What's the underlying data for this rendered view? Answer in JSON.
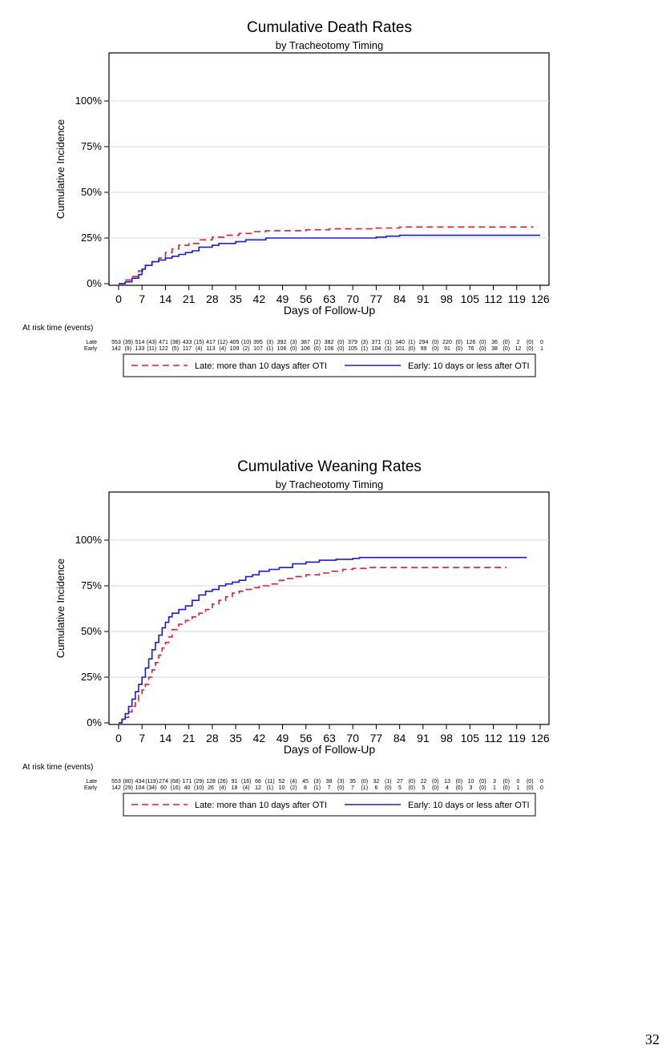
{
  "page_number": "32",
  "chart_data": [
    {
      "type": "line",
      "title": "Cumulative Death Rates",
      "subtitle": "by Tracheotomy Timing",
      "xlabel": "Days of Follow-Up",
      "ylabel": "Cumulative Incidence",
      "xlim": [
        0,
        126
      ],
      "ylim": [
        0,
        1
      ],
      "x_ticks": [
        "0",
        "7",
        "14",
        "21",
        "28",
        "35",
        "42",
        "49",
        "56",
        "63",
        "70",
        "77",
        "84",
        "91",
        "98",
        "105",
        "112",
        "119",
        "126"
      ],
      "y_ticks": [
        "0%",
        "25%",
        "50%",
        "75%",
        "100%"
      ],
      "grid": "horizontal",
      "step": true,
      "series": [
        {
          "name": "Late: more than 10 days after OTI",
          "color": "#e8192c",
          "dash": "dashed",
          "x": [
            0,
            2,
            4,
            6,
            8,
            10,
            12,
            14,
            16,
            18,
            21,
            24,
            28,
            32,
            36,
            40,
            44,
            50,
            56,
            63,
            70,
            77,
            84,
            91,
            98,
            105,
            112,
            119,
            124
          ],
          "y": [
            0,
            0.02,
            0.04,
            0.07,
            0.1,
            0.12,
            0.14,
            0.17,
            0.19,
            0.21,
            0.22,
            0.24,
            0.255,
            0.265,
            0.275,
            0.285,
            0.29,
            0.29,
            0.295,
            0.3,
            0.3,
            0.305,
            0.31,
            0.31,
            0.31,
            0.31,
            0.31,
            0.31,
            0.31
          ]
        },
        {
          "name": "Early: 10 days or less after OTI",
          "color": "#1a1adb",
          "dash": "solid",
          "x": [
            0,
            2,
            4,
            6,
            7,
            8,
            10,
            12,
            14,
            16,
            18,
            20,
            22,
            24,
            28,
            30,
            35,
            38,
            44,
            50,
            56,
            63,
            70,
            77,
            80,
            84,
            91,
            98,
            105,
            112,
            119,
            126
          ],
          "y": [
            0,
            0.01,
            0.03,
            0.05,
            0.08,
            0.1,
            0.12,
            0.13,
            0.14,
            0.15,
            0.16,
            0.17,
            0.18,
            0.2,
            0.21,
            0.22,
            0.23,
            0.24,
            0.25,
            0.25,
            0.25,
            0.25,
            0.25,
            0.255,
            0.26,
            0.265,
            0.265,
            0.265,
            0.265,
            0.265,
            0.265,
            0.265
          ]
        }
      ],
      "risk_table": {
        "label": "At risk time (events)",
        "rows": [
          {
            "group": "Late",
            "values": [
              "553",
              "(39)",
              "514",
              "(43)",
              "471",
              "(38)",
              "433",
              "(15)",
              "417",
              "(12)",
              "405",
              "(10)",
              "395",
              "(3)",
              "392",
              "(3)",
              "387",
              "(2)",
              "382",
              "(0)",
              "379",
              "(3)",
              "371",
              "(1)",
              "340",
              "(1)",
              "294",
              "(0)",
              "220",
              "(0)",
              "126",
              "(0)",
              "36",
              "(0)",
              "2",
              "(0)",
              "0"
            ]
          },
          {
            "group": "Early",
            "values": [
              "142",
              "(9)",
              "133",
              "(11)",
              "122",
              "(5)",
              "117",
              "(4)",
              "113",
              "(4)",
              "109",
              "(2)",
              "107",
              "(1)",
              "106",
              "(0)",
              "106",
              "(0)",
              "106",
              "(0)",
              "105",
              "(1)",
              "104",
              "(1)",
              "101",
              "(0)",
              "99",
              "(0)",
              "91",
              "(0)",
              "76",
              "(0)",
              "38",
              "(0)",
              "12",
              "(0)",
              "1"
            ]
          }
        ]
      },
      "legend": {
        "placement": "bottom",
        "items": [
          "Late: more than 10 days after OTI",
          "Early: 10 days or less after OTI"
        ]
      }
    },
    {
      "type": "line",
      "title": "Cumulative Weaning Rates",
      "subtitle": "by Tracheotomy Timing",
      "xlabel": "Days of Follow-Up",
      "ylabel": "Cumulative Incidence",
      "xlim": [
        0,
        126
      ],
      "ylim": [
        0,
        1
      ],
      "x_ticks": [
        "0",
        "7",
        "14",
        "21",
        "28",
        "35",
        "42",
        "49",
        "56",
        "63",
        "70",
        "77",
        "84",
        "91",
        "98",
        "105",
        "112",
        "119",
        "126"
      ],
      "y_ticks": [
        "0%",
        "25%",
        "50%",
        "75%",
        "100%"
      ],
      "grid": "horizontal",
      "step": true,
      "series": [
        {
          "name": "Late: more than 10 days after OTI",
          "color": "#e8192c",
          "dash": "dashed",
          "x": [
            0,
            1,
            2,
            3,
            4,
            5,
            6,
            7,
            8,
            9,
            10,
            11,
            12,
            13,
            14,
            15,
            16,
            18,
            20,
            22,
            24,
            26,
            28,
            30,
            32,
            34,
            36,
            38,
            40,
            42,
            45,
            48,
            50,
            53,
            56,
            60,
            63,
            67,
            70,
            74,
            77,
            84,
            91,
            98,
            105,
            112,
            116
          ],
          "y": [
            0,
            0.01,
            0.03,
            0.06,
            0.09,
            0.12,
            0.15,
            0.18,
            0.21,
            0.25,
            0.29,
            0.33,
            0.37,
            0.41,
            0.44,
            0.47,
            0.51,
            0.54,
            0.56,
            0.58,
            0.6,
            0.62,
            0.65,
            0.67,
            0.69,
            0.71,
            0.72,
            0.73,
            0.74,
            0.75,
            0.76,
            0.78,
            0.79,
            0.8,
            0.81,
            0.82,
            0.83,
            0.84,
            0.845,
            0.85,
            0.85,
            0.85,
            0.85,
            0.85,
            0.85,
            0.85,
            0.85
          ]
        },
        {
          "name": "Early: 10 days or less after OTI",
          "color": "#1a1adb",
          "dash": "solid",
          "x": [
            0,
            1,
            2,
            3,
            4,
            5,
            6,
            7,
            8,
            9,
            10,
            11,
            12,
            13,
            14,
            15,
            16,
            18,
            20,
            22,
            24,
            26,
            28,
            30,
            32,
            34,
            36,
            38,
            40,
            42,
            45,
            48,
            52,
            56,
            60,
            65,
            70,
            72,
            77,
            84,
            91,
            98,
            105,
            112,
            119,
            122
          ],
          "y": [
            0,
            0.02,
            0.05,
            0.09,
            0.13,
            0.17,
            0.21,
            0.25,
            0.3,
            0.35,
            0.4,
            0.44,
            0.48,
            0.52,
            0.55,
            0.58,
            0.6,
            0.62,
            0.64,
            0.67,
            0.7,
            0.72,
            0.73,
            0.75,
            0.76,
            0.77,
            0.78,
            0.8,
            0.81,
            0.83,
            0.84,
            0.85,
            0.87,
            0.88,
            0.89,
            0.895,
            0.9,
            0.905,
            0.905,
            0.905,
            0.905,
            0.905,
            0.905,
            0.905,
            0.905,
            0.905
          ]
        }
      ],
      "risk_table": {
        "label": "At risk time (events)",
        "rows": [
          {
            "group": "Late",
            "values": [
              "553",
              "(80)",
              "434",
              "(119)",
              "274",
              "(68)",
              "171",
              "(29)",
              "128",
              "(26)",
              "91",
              "(16)",
              "66",
              "(11)",
              "52",
              "(4)",
              "45",
              "(3)",
              "38",
              "(3)",
              "35",
              "(0)",
              "32",
              "(1)",
              "27",
              "(0)",
              "22",
              "(0)",
              "13",
              "(0)",
              "10",
              "(0)",
              "3",
              "(0)",
              "0",
              "(0)",
              "0"
            ]
          },
          {
            "group": "Early",
            "values": [
              "142",
              "(29)",
              "104",
              "(34)",
              "60",
              "(16)",
              "40",
              "(10)",
              "26",
              "(4)",
              "18",
              "(4)",
              "12",
              "(1)",
              "10",
              "(2)",
              "8",
              "(1)",
              "7",
              "(0)",
              "7",
              "(1)",
              "6",
              "(0)",
              "5",
              "(0)",
              "5",
              "(0)",
              "4",
              "(0)",
              "3",
              "(0)",
              "1",
              "(0)",
              "1",
              "(0)",
              "0"
            ]
          }
        ]
      },
      "legend": {
        "placement": "bottom",
        "items": [
          "Late: more than 10 days after OTI",
          "Early: 10 days or less after OTI"
        ]
      }
    }
  ]
}
